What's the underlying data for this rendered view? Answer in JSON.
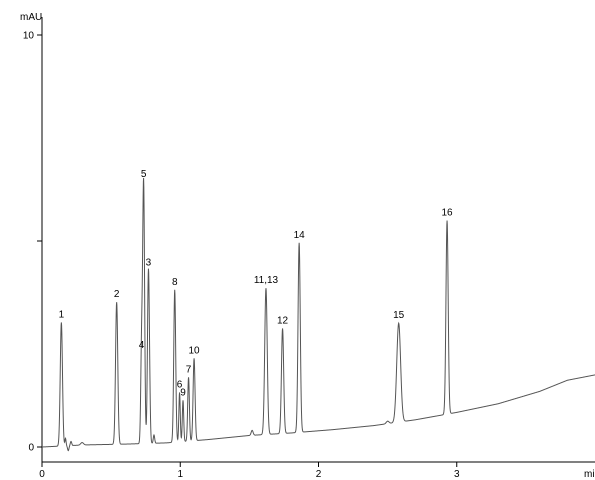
{
  "chart_data": {
    "type": "line",
    "title": "",
    "xlabel": "",
    "ylabel": "",
    "x_unit": "min",
    "y_unit": "mAU",
    "xlim": [
      0,
      4
    ],
    "ylim": [
      0,
      10
    ],
    "x_ticks": [
      0,
      1,
      2,
      3
    ],
    "x_tick_labels": [
      "0",
      "1",
      "2",
      "3"
    ],
    "y_ticks": [
      0,
      5,
      10
    ],
    "y_tick_labels": [
      "0",
      "",
      "10"
    ],
    "grid": false,
    "legend": "none",
    "line_color": "#555555",
    "baseline": {
      "x": [
        0.0,
        0.3,
        0.6,
        0.9,
        1.2,
        1.5,
        1.8,
        2.1,
        2.4,
        2.7,
        3.0,
        3.3,
        3.6,
        3.8,
        4.0
      ],
      "y": [
        0.0,
        0.05,
        0.07,
        0.1,
        0.18,
        0.28,
        0.34,
        0.42,
        0.52,
        0.66,
        0.84,
        1.05,
        1.35,
        1.62,
        1.75
      ]
    },
    "peaks": [
      {
        "label": "1",
        "rt": 0.14,
        "height": 3.0,
        "width": 0.008
      },
      {
        "label": "2",
        "rt": 0.54,
        "height": 3.45,
        "width": 0.008
      },
      {
        "label": "4",
        "rt": 0.72,
        "height": 2.2,
        "width": 0.006
      },
      {
        "label": "5",
        "rt": 0.735,
        "height": 6.35,
        "width": 0.007
      },
      {
        "label": "3",
        "rt": 0.77,
        "height": 4.2,
        "width": 0.007
      },
      {
        "label": "8",
        "rt": 0.96,
        "height": 3.7,
        "width": 0.007
      },
      {
        "label": "6",
        "rt": 0.995,
        "height": 1.2,
        "width": 0.005
      },
      {
        "label": "9",
        "rt": 1.02,
        "height": 1.0,
        "width": 0.005
      },
      {
        "label": "7",
        "rt": 1.06,
        "height": 1.55,
        "width": 0.006
      },
      {
        "label": "10",
        "rt": 1.1,
        "height": 2.0,
        "width": 0.007
      },
      {
        "label": "11,13",
        "rt": 1.62,
        "height": 3.55,
        "width": 0.009
      },
      {
        "label": "12",
        "rt": 1.74,
        "height": 2.55,
        "width": 0.008
      },
      {
        "label": "14",
        "rt": 1.86,
        "height": 4.6,
        "width": 0.008
      },
      {
        "label": "15",
        "rt": 2.58,
        "height": 2.4,
        "width": 0.014
      },
      {
        "label": "16",
        "rt": 2.93,
        "height": 4.7,
        "width": 0.008
      }
    ],
    "minor_features": [
      {
        "rt": 0.17,
        "height": 0.18,
        "width": 0.004
      },
      {
        "rt": 0.19,
        "height": -0.12,
        "width": 0.005
      },
      {
        "rt": 0.21,
        "height": 0.1,
        "width": 0.005
      },
      {
        "rt": 0.29,
        "height": 0.06,
        "width": 0.01
      },
      {
        "rt": 0.78,
        "height": 0.3,
        "width": 0.005
      },
      {
        "rt": 0.81,
        "height": 0.2,
        "width": 0.005
      },
      {
        "rt": 1.52,
        "height": 0.12,
        "width": 0.007
      },
      {
        "rt": 2.5,
        "height": 0.06,
        "width": 0.01
      }
    ]
  }
}
